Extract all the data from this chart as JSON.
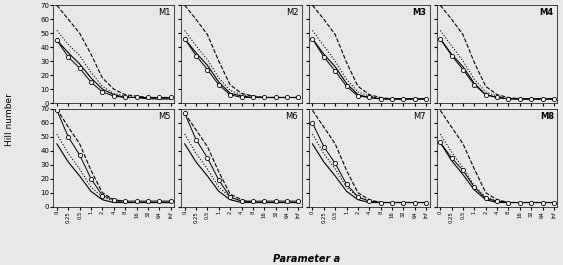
{
  "modules": [
    "M1",
    "M2",
    "M3",
    "M4",
    "M5",
    "M6",
    "M7",
    "M8"
  ],
  "x_labels": [
    "0",
    "0.25",
    "0.5",
    "1",
    "2",
    "4",
    "8",
    "16",
    "32",
    "64",
    "Inf"
  ],
  "x_positions": [
    0,
    1,
    2,
    3,
    4,
    5,
    6,
    7,
    8,
    9,
    10
  ],
  "ylim": [
    0,
    70
  ],
  "yticks": [
    0,
    10,
    20,
    30,
    40,
    50,
    60,
    70
  ],
  "ylabel": "Hill number",
  "xlabel": "Parameter a",
  "bold_modules": [
    "M3",
    "M4",
    "M8"
  ],
  "curves": {
    "M1": {
      "solid": [
        45,
        36,
        28,
        18,
        10,
        6,
        4,
        4,
        3,
        3,
        3
      ],
      "dotted": [
        52,
        42,
        34,
        22,
        12,
        7,
        5,
        4,
        4,
        3,
        3
      ],
      "dashed": [
        70,
        60,
        50,
        35,
        18,
        10,
        6,
        5,
        4,
        4,
        4
      ],
      "circle": [
        45,
        33,
        25,
        15,
        8,
        5,
        4,
        4,
        4,
        4,
        4
      ]
    },
    "M2": {
      "solid": [
        46,
        36,
        27,
        15,
        7,
        5,
        4,
        4,
        4,
        4,
        4
      ],
      "dotted": [
        52,
        41,
        31,
        18,
        9,
        6,
        5,
        4,
        4,
        4,
        4
      ],
      "dashed": [
        70,
        60,
        49,
        30,
        13,
        7,
        5,
        4,
        4,
        4,
        4
      ],
      "circle": [
        46,
        34,
        24,
        13,
        6,
        4,
        4,
        4,
        4,
        4,
        4
      ]
    },
    "M3": {
      "solid": [
        46,
        35,
        26,
        14,
        6,
        4,
        3,
        3,
        3,
        3,
        3
      ],
      "dotted": [
        52,
        41,
        30,
        17,
        8,
        5,
        3,
        3,
        3,
        3,
        3
      ],
      "dashed": [
        70,
        60,
        49,
        29,
        12,
        6,
        4,
        3,
        3,
        3,
        3
      ],
      "circle": [
        46,
        33,
        23,
        12,
        5,
        4,
        3,
        3,
        3,
        3,
        3
      ]
    },
    "M4": {
      "solid": [
        46,
        35,
        26,
        14,
        6,
        4,
        3,
        3,
        3,
        3,
        3
      ],
      "dotted": [
        52,
        41,
        30,
        17,
        8,
        5,
        3,
        3,
        3,
        3,
        3
      ],
      "dashed": [
        70,
        60,
        49,
        29,
        12,
        6,
        4,
        3,
        3,
        3,
        3
      ],
      "circle": [
        46,
        34,
        24,
        13,
        6,
        4,
        3,
        3,
        3,
        3,
        3
      ]
    },
    "M5": {
      "solid": [
        45,
        32,
        22,
        11,
        5,
        3,
        3,
        3,
        3,
        3,
        3
      ],
      "dotted": [
        52,
        38,
        27,
        14,
        7,
        4,
        3,
        3,
        3,
        3,
        3
      ],
      "dashed": [
        70,
        57,
        45,
        26,
        10,
        5,
        3,
        3,
        3,
        3,
        3
      ],
      "circle": [
        69,
        50,
        37,
        20,
        8,
        5,
        4,
        4,
        4,
        4,
        4
      ]
    },
    "M6": {
      "solid": [
        45,
        32,
        22,
        11,
        5,
        3,
        3,
        3,
        3,
        3,
        3
      ],
      "dotted": [
        52,
        38,
        27,
        14,
        7,
        4,
        3,
        3,
        3,
        3,
        3
      ],
      "dashed": [
        67,
        55,
        43,
        25,
        9,
        5,
        3,
        3,
        3,
        3,
        3
      ],
      "circle": [
        67,
        48,
        35,
        19,
        7,
        4,
        4,
        4,
        4,
        4,
        4
      ]
    },
    "M7": {
      "solid": [
        45,
        32,
        22,
        11,
        5,
        3,
        3,
        3,
        3,
        3,
        3
      ],
      "dotted": [
        52,
        38,
        27,
        14,
        7,
        4,
        3,
        3,
        3,
        3,
        3
      ],
      "dashed": [
        69,
        57,
        45,
        26,
        10,
        5,
        3,
        3,
        3,
        3,
        3
      ],
      "circle": [
        60,
        43,
        31,
        16,
        7,
        4,
        3,
        3,
        3,
        3,
        3
      ]
    },
    "M8": {
      "solid": [
        46,
        33,
        23,
        12,
        5,
        3,
        3,
        3,
        3,
        3,
        3
      ],
      "dotted": [
        52,
        39,
        28,
        15,
        7,
        4,
        3,
        3,
        3,
        3,
        3
      ],
      "dashed": [
        69,
        57,
        45,
        27,
        10,
        5,
        3,
        3,
        3,
        3,
        3
      ],
      "circle": [
        46,
        35,
        26,
        14,
        6,
        4,
        3,
        3,
        3,
        3,
        3
      ]
    }
  },
  "line_color": "#000000",
  "circle_color": "#ffffff",
  "circle_edge": "#000000",
  "bg_color": "#e8e8e8"
}
